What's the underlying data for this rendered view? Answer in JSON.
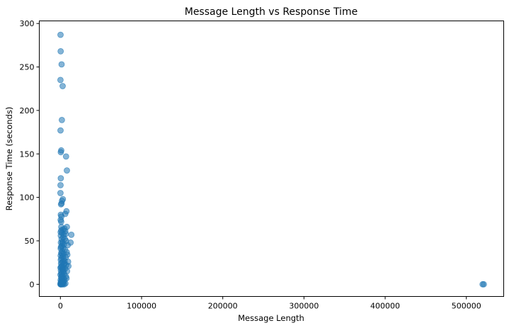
{
  "chart_data": {
    "type": "scatter",
    "title": "Message Length vs Response Time",
    "xlabel": "Message Length",
    "ylabel": "Response Time (seconds)",
    "xlim": [
      -26000,
      546000
    ],
    "ylim": [
      -14,
      303
    ],
    "xticks": [
      0,
      100000,
      200000,
      300000,
      400000,
      500000
    ],
    "yticks": [
      0,
      50,
      100,
      150,
      200,
      250,
      300
    ],
    "grid": false,
    "marker_color": "#1f77b4",
    "marker_alpha": 0.55,
    "series": [
      {
        "points": [
          [
            200,
            287
          ],
          [
            300,
            268
          ],
          [
            1500,
            253
          ],
          [
            100,
            235
          ],
          [
            2800,
            228
          ],
          [
            1800,
            189
          ],
          [
            200,
            177
          ],
          [
            1000,
            154
          ],
          [
            500,
            152
          ],
          [
            7000,
            147
          ],
          [
            8000,
            131
          ],
          [
            500,
            122
          ],
          [
            200,
            114
          ],
          [
            100,
            105
          ],
          [
            3000,
            98
          ],
          [
            2000,
            96
          ],
          [
            1500,
            93
          ],
          [
            800,
            92
          ],
          [
            7500,
            84
          ],
          [
            6000,
            81
          ],
          [
            500,
            80
          ],
          [
            1200,
            78
          ],
          [
            300,
            74
          ],
          [
            900,
            72
          ],
          [
            13500,
            57
          ],
          [
            12500,
            48
          ],
          [
            8000,
            66
          ],
          [
            5000,
            64
          ],
          [
            3000,
            63
          ],
          [
            1000,
            62
          ],
          [
            6000,
            61
          ],
          [
            2000,
            59
          ],
          [
            4000,
            57
          ],
          [
            500,
            56
          ],
          [
            3500,
            54
          ],
          [
            1500,
            52
          ],
          [
            7000,
            50
          ],
          [
            2500,
            49
          ],
          [
            600,
            48
          ],
          [
            4500,
            46
          ],
          [
            9000,
            45
          ],
          [
            1800,
            44
          ],
          [
            3200,
            42
          ],
          [
            400,
            41
          ],
          [
            5500,
            40
          ],
          [
            2200,
            38
          ],
          [
            7800,
            37
          ],
          [
            1000,
            36
          ],
          [
            4000,
            35
          ],
          [
            8500,
            34
          ],
          [
            300,
            33
          ],
          [
            2800,
            32
          ],
          [
            6500,
            31
          ],
          [
            1200,
            30
          ],
          [
            3800,
            29
          ],
          [
            500,
            28
          ],
          [
            5200,
            27
          ],
          [
            9500,
            26
          ],
          [
            2000,
            25
          ],
          [
            800,
            24
          ],
          [
            4300,
            23
          ],
          [
            7200,
            22
          ],
          [
            1500,
            21
          ],
          [
            9800,
            21
          ],
          [
            3000,
            20
          ],
          [
            200,
            19
          ],
          [
            5800,
            18
          ],
          [
            2400,
            17
          ],
          [
            600,
            16
          ],
          [
            8200,
            15
          ],
          [
            3600,
            14
          ],
          [
            1100,
            13
          ],
          [
            4800,
            12
          ],
          [
            100,
            11
          ],
          [
            2700,
            10
          ],
          [
            6800,
            9
          ],
          [
            900,
            8
          ],
          [
            3900,
            7
          ],
          [
            7600,
            7
          ],
          [
            1600,
            6
          ],
          [
            300,
            5
          ],
          [
            5100,
            5
          ],
          [
            2100,
            4
          ],
          [
            700,
            3
          ],
          [
            4200,
            3
          ],
          [
            1300,
            2
          ],
          [
            200,
            1
          ],
          [
            3300,
            1
          ],
          [
            6200,
            1
          ],
          [
            500,
            0
          ],
          [
            1800,
            0
          ],
          [
            2900,
            0
          ],
          [
            100,
            0
          ],
          [
            4600,
            0
          ],
          [
            900,
            0
          ],
          [
            1400,
            12
          ],
          [
            2600,
            18
          ],
          [
            3400,
            26
          ],
          [
            1700,
            35
          ],
          [
            700,
            43
          ],
          [
            2300,
            47
          ],
          [
            5600,
            52
          ],
          [
            6600,
            58
          ],
          [
            1100,
            66
          ],
          [
            300,
            60
          ],
          [
            800,
            20
          ],
          [
            1900,
            9
          ],
          [
            2500,
            3
          ],
          [
            4100,
            16
          ],
          [
            5300,
            24
          ],
          [
            520000,
            0
          ],
          [
            521500,
            0
          ]
        ]
      }
    ]
  }
}
